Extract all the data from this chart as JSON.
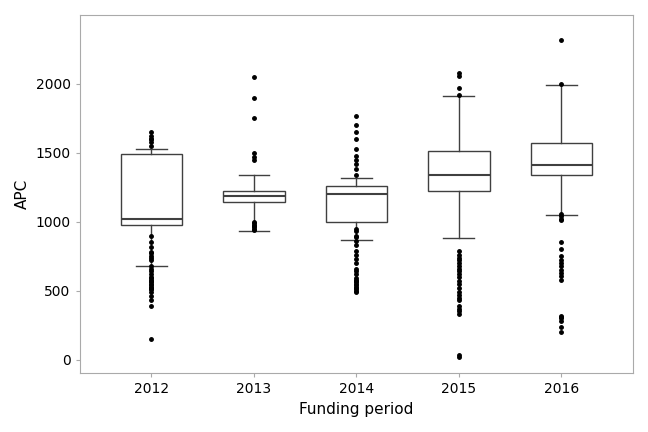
{
  "title": "",
  "xlabel": "Funding period",
  "ylabel": "APC",
  "background_color": "#ffffff",
  "plot_bg_color": "#ffffff",
  "years": [
    "2012",
    "2013",
    "2014",
    "2015",
    "2016"
  ],
  "ylim": [
    -100,
    2500
  ],
  "yticks": [
    0,
    500,
    1000,
    1500,
    2000
  ],
  "box_width": 0.6,
  "boxes": {
    "2012": {
      "q1": 975,
      "median": 1020,
      "q3": 1490,
      "whislo": 680,
      "whishi": 1530,
      "mean": null
    },
    "2013": {
      "q1": 1140,
      "median": 1190,
      "q3": 1220,
      "whislo": 930,
      "whishi": 1340,
      "mean": null
    },
    "2014": {
      "q1": 1000,
      "median": 1200,
      "q3": 1260,
      "whislo": 870,
      "whishi": 1320,
      "mean": null
    },
    "2015": {
      "q1": 1220,
      "median": 1340,
      "q3": 1510,
      "whislo": 880,
      "whishi": 1910,
      "mean": null
    },
    "2016": {
      "q1": 1340,
      "median": 1415,
      "q3": 1570,
      "whislo": 1050,
      "whishi": 1990,
      "mean": null
    }
  },
  "outliers": {
    "2012": [
      150,
      390,
      430,
      460,
      490,
      510,
      510,
      520,
      530,
      540,
      550,
      560,
      570,
      580,
      590,
      600,
      620,
      640,
      660,
      680,
      720,
      740,
      750,
      770,
      780,
      820,
      850,
      900,
      1550,
      1580,
      1600,
      1600,
      1620,
      1650
    ],
    "2013": [
      940,
      950,
      960,
      970,
      980,
      990,
      1000,
      1450,
      1470,
      1500,
      1750,
      1900,
      2050
    ],
    "2014": [
      490,
      500,
      510,
      520,
      530,
      540,
      550,
      560,
      570,
      580,
      590,
      620,
      640,
      660,
      700,
      730,
      760,
      790,
      830,
      860,
      890,
      900,
      930,
      950,
      1340,
      1380,
      1420,
      1450,
      1480,
      1530,
      1600,
      1650,
      1700,
      1770
    ],
    "2015": [
      20,
      30,
      330,
      350,
      370,
      390,
      430,
      450,
      470,
      490,
      520,
      550,
      570,
      600,
      620,
      640,
      660,
      680,
      700,
      720,
      740,
      760,
      790,
      1920,
      1970,
      2060,
      2080
    ],
    "2016": [
      200,
      240,
      280,
      300,
      310,
      320,
      580,
      610,
      630,
      650,
      680,
      700,
      720,
      750,
      800,
      850,
      1010,
      1020,
      1040,
      1055,
      2000,
      2320
    ]
  },
  "box_color": "#ffffff",
  "median_color": "#404040",
  "whisker_color": "#404040",
  "outlier_color": "#000000",
  "box_edge_color": "#404040",
  "flier_size": 2.5
}
